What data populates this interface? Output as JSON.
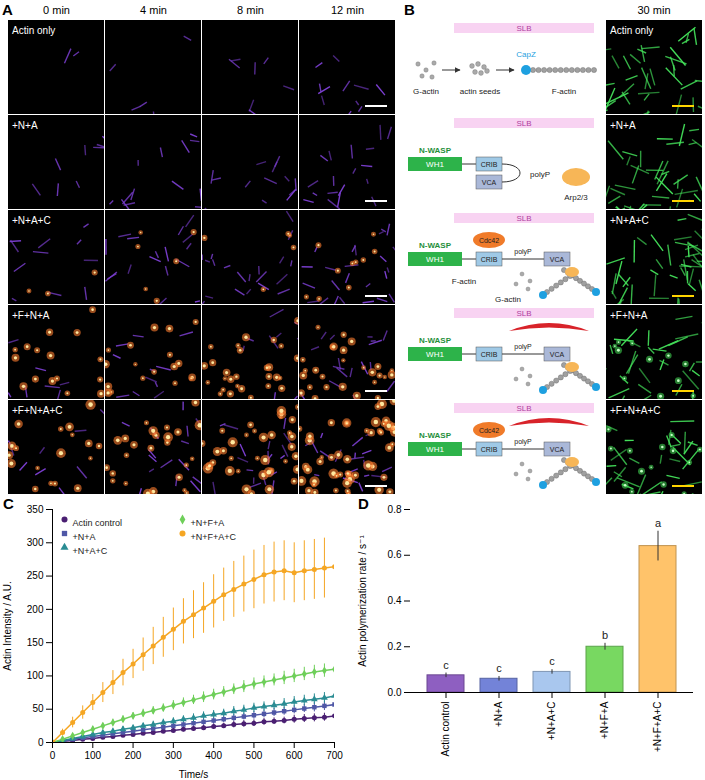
{
  "panels": {
    "A": {
      "letter": "A",
      "columns": [
        "0 min",
        "4 min",
        "8 min",
        "12 min"
      ],
      "rows": [
        "Actin only",
        "+N+A",
        "+N+A+C",
        "+F+N+A",
        "+F+N+A+C"
      ]
    },
    "B": {
      "letter": "B",
      "time": "30 min",
      "rows": [
        "Actin only",
        "+N+A",
        "+N+A+C",
        "+F+N+A",
        "+F+N+A+C"
      ],
      "schematics": [
        {
          "slb": "SLB",
          "g_actin": "G-actin",
          "seeds": "actin seeds",
          "f_actin": "F-actin",
          "capz": "CapZ"
        },
        {
          "slb": "SLB",
          "nwasp": "N-WASP",
          "wh1": "WH1",
          "crib": "CRIB",
          "vca": "VCA",
          "polyp": "polyP",
          "arp": "Arp2/3"
        },
        {
          "slb": "SLB",
          "nwasp": "N-WASP",
          "wh1": "WH1",
          "cdc42": "Cdc42",
          "crib": "CRIB",
          "polyp": "polyP",
          "vca": "VCA",
          "f_actin": "F-actin",
          "g_actin": "G-actin"
        },
        {
          "slb": "SLB",
          "nwasp": "N-WASP",
          "wh1": "WH1",
          "crib": "CRIB",
          "polyp": "polyP",
          "vca": "VCA"
        },
        {
          "slb": "SLB",
          "nwasp": "N-WASP",
          "wh1": "WH1",
          "cdc42": "Cdc42",
          "crib": "CRIB",
          "polyp": "polyP",
          "vca": "VCA"
        }
      ]
    }
  },
  "chart_data": [
    {
      "type": "line",
      "panel_label": "C",
      "x_label": "Time/s",
      "y_label": "Actin Intensity / A.U.",
      "x": [
        0,
        25,
        50,
        75,
        100,
        125,
        150,
        175,
        200,
        225,
        250,
        275,
        300,
        325,
        350,
        375,
        400,
        425,
        450,
        475,
        500,
        525,
        550,
        575,
        600,
        625,
        650,
        675,
        700
      ],
      "xlim": [
        0,
        700
      ],
      "xticks": [
        0,
        100,
        200,
        300,
        400,
        500,
        600,
        700
      ],
      "ylim": [
        0,
        350
      ],
      "yticks": [
        0,
        50,
        100,
        150,
        200,
        250,
        300,
        350
      ],
      "grid": false,
      "legend": "upper left",
      "series": [
        {
          "name": "Actin control",
          "color": "#4a1f72",
          "marker": "circle",
          "values": [
            0,
            2,
            3,
            5,
            6,
            8,
            9,
            11,
            12,
            14,
            15,
            17,
            18,
            20,
            21,
            22,
            24,
            25,
            27,
            28,
            29,
            31,
            32,
            33,
            35,
            36,
            37,
            38,
            40
          ],
          "errors": [
            0,
            1,
            1,
            1,
            2,
            2,
            2,
            2,
            3,
            3,
            3,
            3,
            3,
            4,
            4,
            4,
            4,
            4,
            5,
            5,
            5,
            5,
            5,
            5,
            6,
            6,
            6,
            6,
            6
          ]
        },
        {
          "name": "+N+A",
          "color": "#4f57a6",
          "marker": "square",
          "values": [
            0,
            2,
            5,
            7,
            9,
            11,
            13,
            15,
            17,
            19,
            21,
            23,
            25,
            27,
            29,
            31,
            33,
            35,
            37,
            39,
            41,
            43,
            45,
            47,
            49,
            51,
            53,
            55,
            57
          ],
          "errors": [
            0,
            1,
            1,
            2,
            2,
            2,
            3,
            3,
            3,
            3,
            4,
            4,
            4,
            4,
            4,
            5,
            5,
            5,
            5,
            5,
            6,
            6,
            6,
            6,
            6,
            6,
            7,
            7,
            7
          ]
        },
        {
          "name": "+N+A+C",
          "color": "#2a8c93",
          "marker": "triangle",
          "values": [
            0,
            3,
            6,
            9,
            12,
            15,
            17,
            20,
            22,
            25,
            27,
            30,
            32,
            35,
            37,
            40,
            42,
            44,
            47,
            49,
            52,
            54,
            56,
            58,
            61,
            63,
            65,
            67,
            70
          ],
          "errors": [
            0,
            1,
            2,
            2,
            3,
            3,
            3,
            4,
            4,
            4,
            5,
            5,
            5,
            5,
            6,
            6,
            6,
            6,
            7,
            7,
            7,
            7,
            7,
            8,
            8,
            8,
            8,
            8,
            8
          ]
        },
        {
          "name": "+N+F+A",
          "color": "#6fcf5a",
          "marker": "diamond",
          "values": [
            0,
            5,
            10,
            15,
            20,
            25,
            30,
            35,
            40,
            44,
            48,
            52,
            56,
            60,
            64,
            68,
            72,
            76,
            80,
            84,
            88,
            91,
            94,
            97,
            100,
            103,
            106,
            108,
            110
          ],
          "errors": [
            0,
            2,
            3,
            3,
            4,
            4,
            5,
            5,
            5,
            6,
            6,
            6,
            7,
            7,
            7,
            8,
            8,
            8,
            8,
            9,
            9,
            9,
            9,
            10,
            10,
            10,
            10,
            10,
            10
          ]
        },
        {
          "name": "+N+F+A+C",
          "color": "#f5a623",
          "marker": "circle",
          "values": [
            0,
            15,
            30,
            45,
            60,
            75,
            90,
            105,
            118,
            132,
            145,
            158,
            170,
            182,
            192,
            202,
            212,
            222,
            230,
            238,
            245,
            252,
            256,
            258,
            255,
            258,
            260,
            262,
            264
          ],
          "errors": [
            0,
            5,
            8,
            10,
            12,
            15,
            18,
            20,
            22,
            25,
            28,
            30,
            32,
            34,
            36,
            38,
            40,
            40,
            42,
            42,
            44,
            44,
            45,
            45,
            45,
            45,
            45,
            45,
            45
          ]
        }
      ]
    },
    {
      "type": "bar",
      "panel_label": "D",
      "y_label": "Actin polymerization rate / s⁻¹",
      "categories": [
        "Actin control",
        "+N+A",
        "+N+A+C",
        "+N+F+A",
        "+N+F+A+C"
      ],
      "values": [
        0.075,
        0.06,
        0.09,
        0.2,
        0.64
      ],
      "errors": [
        0.01,
        0.01,
        0.01,
        0.015,
        0.065
      ],
      "significance_letters": [
        "c",
        "c",
        "c",
        "b",
        "a"
      ],
      "colors": [
        "#8e5fc1",
        "#7383d8",
        "#a9c7ee",
        "#78d861",
        "#ffc36a"
      ],
      "ylim": [
        0,
        0.8
      ],
      "yticks": [
        {
          "value": 0,
          "label": "0.0"
        },
        0.2,
        0.4,
        0.6,
        0.8
      ],
      "grid": false
    }
  ]
}
